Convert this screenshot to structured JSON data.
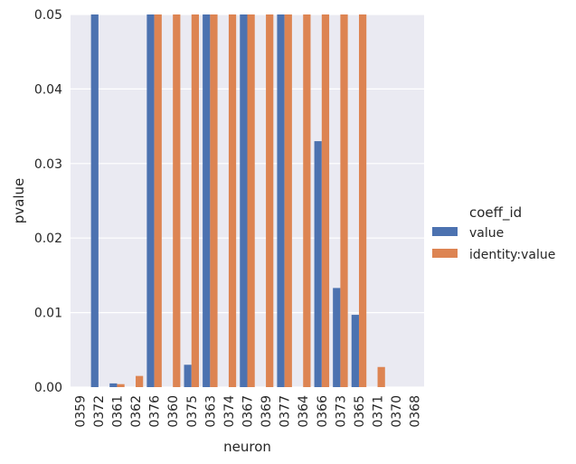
{
  "chart_data": {
    "type": "bar",
    "xlabel": "neuron",
    "ylabel": "pvalue",
    "ylim": [
      0,
      0.05
    ],
    "yticks": [
      "0.00",
      "0.01",
      "0.02",
      "0.03",
      "0.04",
      "0.05"
    ],
    "grid": true,
    "categories": [
      "0359",
      "0372",
      "0361",
      "0362",
      "0376",
      "0360",
      "0375",
      "0363",
      "0374",
      "0367",
      "0369",
      "0377",
      "0364",
      "0366",
      "0373",
      "0365",
      "0371",
      "0370",
      "0368"
    ],
    "legend": {
      "title": "coeff_id",
      "placement": "center-right"
    },
    "series": [
      {
        "name": "value",
        "color": "#4c72b0",
        "values": [
          0,
          0.05,
          0.0005,
          0,
          0.05,
          0,
          0.003,
          0.05,
          0,
          0.05,
          0,
          0.05,
          0,
          0.033,
          0.0133,
          0.0097,
          0,
          0,
          0
        ]
      },
      {
        "name": "identity:value",
        "color": "#dd8452",
        "values": [
          0,
          0,
          0.0004,
          0.0015,
          0.05,
          0.05,
          0.05,
          0.05,
          0.05,
          0.05,
          0.05,
          0.05,
          0.05,
          0.05,
          0.05,
          0.05,
          0.0027,
          0,
          0
        ]
      }
    ]
  }
}
